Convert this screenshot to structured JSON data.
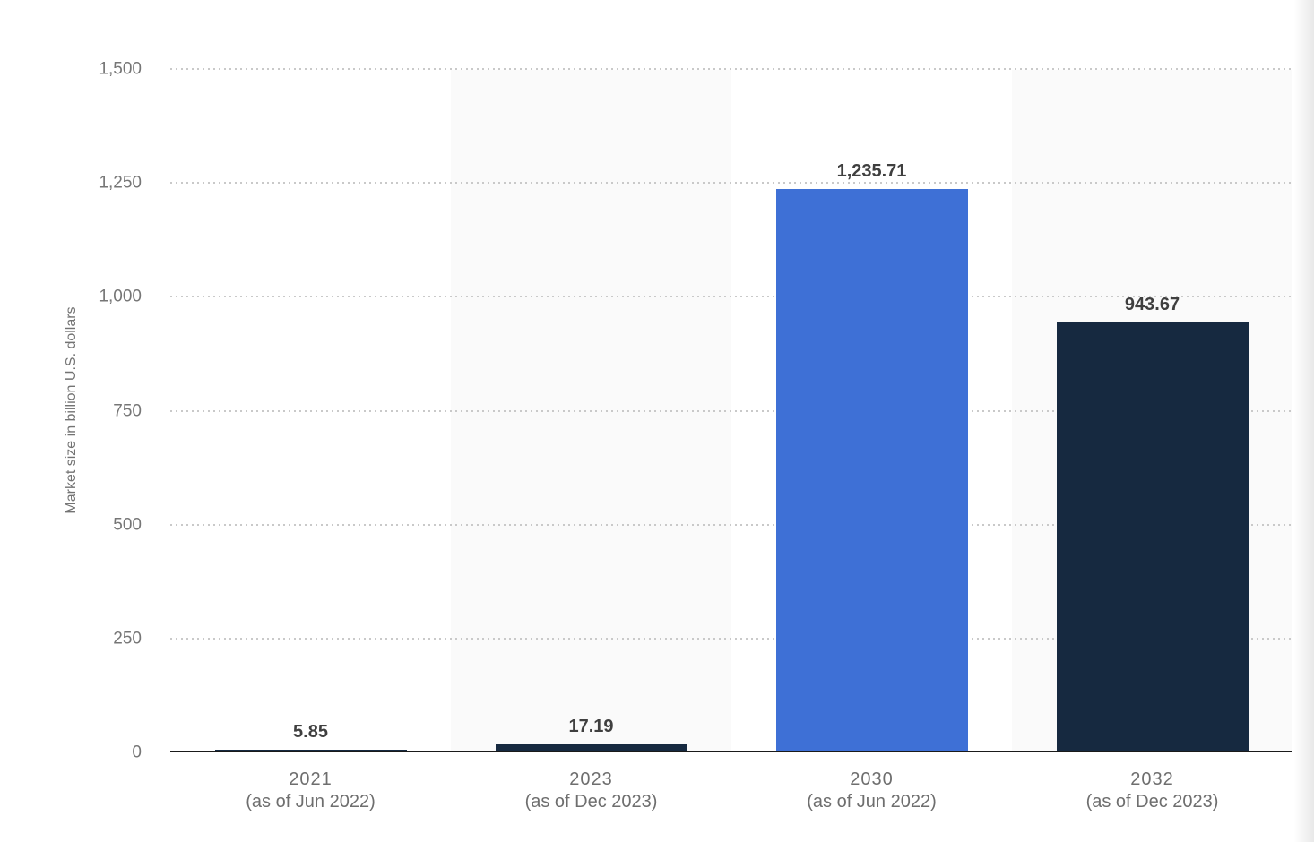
{
  "chart_data": {
    "type": "bar",
    "title": "",
    "xlabel": "",
    "ylabel": "Market size in billion U.S. dollars",
    "ylim": [
      0,
      1500
    ],
    "yticks": [
      0,
      250,
      500,
      750,
      1000,
      1250,
      1500
    ],
    "ytick_labels": [
      "0",
      "250",
      "500",
      "750",
      "1,000",
      "1,250",
      "1,500"
    ],
    "grid": "horizontal-dotted",
    "legend_position": "none",
    "categories": [
      {
        "year": "2021",
        "note": "(as of Jun 2022)"
      },
      {
        "year": "2023",
        "note": "(as of Dec 2023)"
      },
      {
        "year": "2030",
        "note": "(as of Jun 2022)"
      },
      {
        "year": "2032",
        "note": "(as of Dec 2023)"
      }
    ],
    "values": [
      5.85,
      17.19,
      1235.71,
      943.67
    ],
    "value_labels": [
      "5.85",
      "17.19",
      "1,235.71",
      "943.67"
    ],
    "bar_colors": [
      "#162940",
      "#162940",
      "#3e70d6",
      "#162940"
    ],
    "band_columns": [
      1,
      3
    ],
    "band_color": "#fafafa"
  },
  "colors": {
    "background": "#ffffff",
    "axis_line": "#1a1a1a",
    "gridline": "#c9c9c9",
    "y_tick_label": "#767676",
    "x_tick_label": "#6e6e6e",
    "value_label": "#3f3f3f",
    "y_axis_title": "#737373",
    "bar_navy": "#162940",
    "bar_blue": "#3e70d6"
  }
}
